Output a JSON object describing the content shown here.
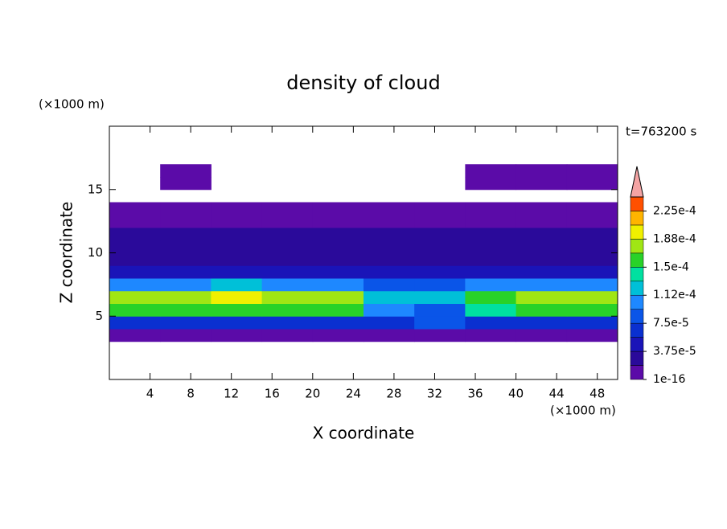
{
  "chart_data": {
    "type": "contour",
    "title": "density of cloud",
    "xlabel": "X coordinate",
    "ylabel": "Z coordinate",
    "x_unit": "(×1000 m)",
    "y_unit": "(×1000 m)",
    "annotation": "t=763200 s",
    "xlim": [
      0,
      50
    ],
    "ylim": [
      0,
      20
    ],
    "xticks": [
      4,
      8,
      12,
      16,
      20,
      24,
      28,
      32,
      36,
      40,
      44,
      48
    ],
    "yticks": [
      5,
      10,
      15
    ],
    "x_edges": [
      0,
      5,
      10,
      15,
      20,
      25,
      30,
      35,
      40,
      45,
      50
    ],
    "z_edges": [
      3,
      4,
      5,
      6,
      7,
      8,
      9,
      10,
      11,
      12,
      13,
      14,
      15,
      16,
      17
    ],
    "values": [
      [
        1e-05,
        1e-05,
        1e-05,
        1e-05,
        1e-05,
        1e-05,
        1e-05,
        1e-05,
        1e-05,
        1e-05
      ],
      [
        6e-05,
        6e-05,
        6e-05,
        6e-05,
        6e-05,
        6e-05,
        8e-05,
        6e-05,
        6e-05,
        6e-05
      ],
      [
        0.00015,
        0.00016,
        0.00016,
        0.00016,
        0.00015,
        0.00011,
        9e-05,
        0.00014,
        0.00016,
        0.00015
      ],
      [
        0.00017,
        0.00018,
        0.00019,
        0.00018,
        0.00018,
        0.00013,
        0.00012,
        0.00016,
        0.00018,
        0.00017
      ],
      [
        0.0001,
        0.00011,
        0.00012,
        0.00011,
        0.0001,
        8e-05,
        9e-05,
        0.0001,
        0.00011,
        0.0001
      ],
      [
        5e-05,
        5e-05,
        5e-05,
        5e-05,
        5e-05,
        5e-05,
        5e-05,
        5e-05,
        5e-05,
        5e-05
      ],
      [
        3.5e-05,
        3.5e-05,
        3.5e-05,
        3.5e-05,
        3.5e-05,
        3.5e-05,
        3.5e-05,
        3.5e-05,
        3.5e-05,
        3.5e-05
      ],
      [
        2.5e-05,
        2.5e-05,
        2.5e-05,
        2.5e-05,
        2.5e-05,
        2.5e-05,
        2.5e-05,
        2.5e-05,
        2.5e-05,
        2.5e-05
      ],
      [
        2e-05,
        2e-05,
        2e-05,
        2e-05,
        2e-05,
        2e-05,
        2e-05,
        2e-05,
        2e-05,
        2e-05
      ],
      [
        1e-05,
        1e-05,
        1e-05,
        1e-05,
        1e-05,
        1e-05,
        1e-05,
        1e-05,
        1e-05,
        1e-05
      ],
      [
        1e-05,
        1e-05,
        1e-05,
        1e-05,
        1e-05,
        1e-05,
        1e-05,
        1e-05,
        1e-05,
        1e-05
      ],
      [
        null,
        null,
        null,
        null,
        null,
        null,
        null,
        null,
        null,
        null
      ],
      [
        null,
        1e-05,
        null,
        null,
        null,
        null,
        null,
        1e-05,
        1e-05,
        1e-05
      ],
      [
        null,
        1e-05,
        null,
        null,
        null,
        null,
        null,
        1e-05,
        1e-05,
        1e-05
      ]
    ],
    "colorbar": {
      "levels": [
        1e-16,
        1.875e-05,
        3.75e-05,
        5.625e-05,
        7.5e-05,
        9.375e-05,
        0.0001125,
        0.00013125,
        0.00015,
        0.00016875,
        0.0001875,
        0.00020625,
        0.000225,
        0.00024375
      ],
      "colors": [
        "#5b0ba8",
        "#2a0a9a",
        "#1a14b8",
        "#0a30d0",
        "#0a55e8",
        "#1e88ff",
        "#00c0d8",
        "#00e0a0",
        "#28d228",
        "#a0e614",
        "#f0f000",
        "#ffb400",
        "#ff5000"
      ],
      "extend_color": "#f4a4a4",
      "ticks": [
        {
          "value": 1e-16,
          "label": "1e-16"
        },
        {
          "value": 3.75e-05,
          "label": "3.75e-5"
        },
        {
          "value": 7.5e-05,
          "label": "7.5e-5"
        },
        {
          "value": 0.0001125,
          "label": "1.12e-4"
        },
        {
          "value": 0.00015,
          "label": "1.5e-4"
        },
        {
          "value": 0.0001875,
          "label": "1.88e-4"
        },
        {
          "value": 0.000225,
          "label": "2.25e-4"
        }
      ]
    }
  }
}
